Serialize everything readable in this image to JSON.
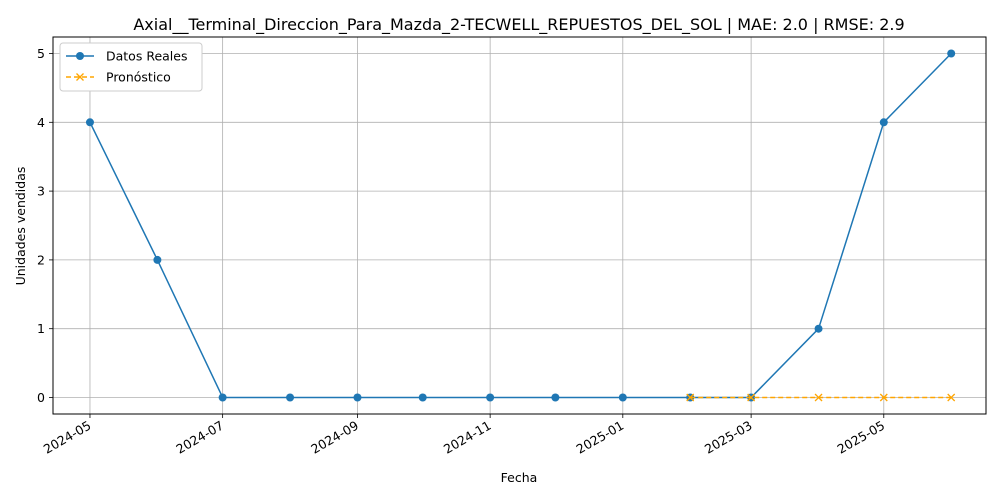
{
  "chart_data": {
    "type": "line",
    "title": "Axial__Terminal_Direccion_Para_Mazda_2-TECWELL_REPUESTOS_DEL_SOL | MAE: 2.0 | RMSE: 2.9",
    "xlabel": "Fecha",
    "ylabel": "Unidades vendidas",
    "ylim": [
      -0.24,
      5.24
    ],
    "xlim": [
      "2024-04-14",
      "2025-06-17"
    ],
    "x_ticks": [
      "2024-05",
      "2024-07",
      "2024-09",
      "2024-11",
      "2025-01",
      "2025-03",
      "2025-05"
    ],
    "x_tick_dates": [
      "2024-05-01",
      "2024-07-01",
      "2024-09-01",
      "2024-11-01",
      "2025-01-01",
      "2025-03-01",
      "2025-05-01"
    ],
    "y_ticks": [
      0,
      1,
      2,
      3,
      4,
      5
    ],
    "grid": true,
    "legend_position": "top-left",
    "series": [
      {
        "name": "Datos Reales",
        "color": "#1f77b4",
        "style": "solid",
        "marker": "circle",
        "x": [
          "2024-05-01",
          "2024-06-01",
          "2024-07-01",
          "2024-08-01",
          "2024-09-01",
          "2024-10-01",
          "2024-11-01",
          "2024-12-01",
          "2025-01-01",
          "2025-02-01",
          "2025-03-01",
          "2025-04-01",
          "2025-05-01",
          "2025-06-01"
        ],
        "values": [
          4,
          2,
          0,
          0,
          0,
          0,
          0,
          0,
          0,
          0,
          0,
          1,
          4,
          5
        ]
      },
      {
        "name": "Pronóstico",
        "color": "#ffa500",
        "style": "dashed",
        "marker": "x",
        "x": [
          "2025-02-01",
          "2025-03-01",
          "2025-04-01",
          "2025-05-01",
          "2025-06-01"
        ],
        "values": [
          0,
          0,
          0,
          0,
          0
        ]
      }
    ]
  }
}
